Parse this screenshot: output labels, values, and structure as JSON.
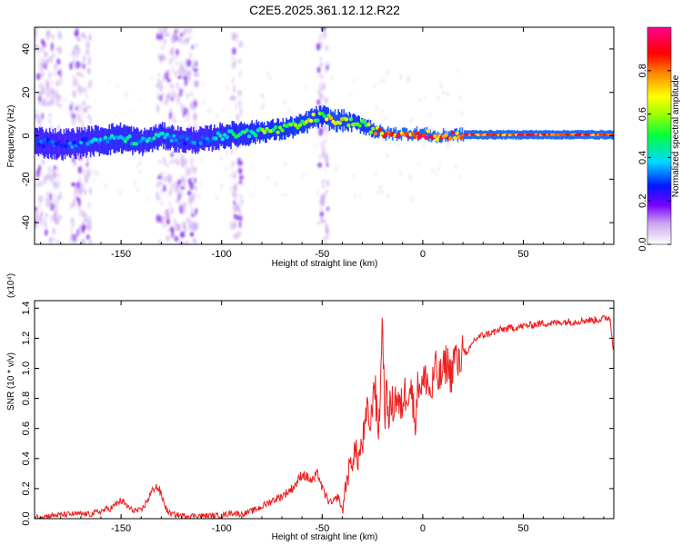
{
  "title": "C2E5.2025.361.12.12.R22",
  "colors": {
    "snr_line": "#ee2020",
    "track_core": "#e83030",
    "axis": "#000000"
  },
  "chart_data": [
    {
      "type": "heatmap",
      "name": "spectrogram",
      "xlabel": "Height of straight line (km)",
      "ylabel": "Frequency (Hz)",
      "xlim": [
        -193,
        95
      ],
      "ylim": [
        -50,
        50
      ],
      "xticks": [
        -150,
        -100,
        -50,
        0,
        50
      ],
      "yticks": [
        -40,
        -20,
        0,
        20,
        40
      ],
      "colorbar": {
        "label": "Normalized spectral amplitude",
        "range": [
          0,
          1
        ],
        "ticks": [
          0.0,
          0.2,
          0.4,
          0.6,
          0.8
        ],
        "tick_labels": [
          "0.0",
          "0.2",
          "0.4",
          "0.6",
          "0.8"
        ],
        "colormap": "rainbow (white-violet-blue-cyan-green-yellow-red-magenta)"
      },
      "track": {
        "description": "peak frequency of the spectrum vs height",
        "x": [
          -190,
          -180,
          -170,
          -160,
          -150,
          -140,
          -130,
          -120,
          -110,
          -100,
          -90,
          -80,
          -70,
          -60,
          -55,
          -50,
          -45,
          -40,
          -35,
          -30,
          -25,
          -20,
          -15,
          -10,
          -5,
          0,
          5,
          8,
          10,
          15,
          20,
          40,
          60,
          80,
          93
        ],
        "y": [
          -3,
          -4,
          -3,
          -2,
          -1,
          -3,
          0,
          -2,
          -2,
          0,
          1,
          2,
          3,
          5,
          8,
          9,
          7,
          7,
          6,
          5,
          3,
          1,
          1,
          1,
          1,
          1,
          0,
          -1,
          0,
          0.5,
          0.5,
          0.5,
          0.5,
          0.5,
          0.5
        ],
        "amplitude": [
          0.3,
          0.3,
          0.35,
          0.4,
          0.45,
          0.4,
          0.45,
          0.3,
          0.35,
          0.45,
          0.5,
          0.55,
          0.6,
          0.65,
          0.65,
          0.6,
          0.75,
          0.7,
          0.6,
          0.6,
          0.7,
          0.85,
          0.9,
          0.9,
          0.9,
          0.9,
          0.9,
          0.8,
          0.9,
          0.9,
          0.9,
          0.9,
          0.9,
          0.9,
          0.9
        ],
        "spread_hz": [
          6,
          6,
          6,
          6,
          6,
          5,
          5,
          5,
          5,
          5,
          5,
          4,
          4,
          4,
          4,
          4,
          4,
          4,
          3,
          3,
          3,
          2,
          2,
          2,
          2,
          2,
          2,
          2,
          2,
          2,
          2,
          2,
          2,
          2,
          2
        ]
      },
      "noise_bands_km": [
        [
          -193,
          -180
        ],
        [
          -175,
          -165
        ],
        [
          -132,
          -112
        ],
        [
          -95,
          -90
        ],
        [
          -52,
          -47
        ]
      ]
    },
    {
      "type": "line",
      "name": "snr",
      "xlabel": "Height of straight line (km)",
      "ylabel": "SNR (10 * v/v)",
      "scale_label": "(x10⁴)",
      "xlim": [
        -193,
        95
      ],
      "ylim": [
        0,
        1.45
      ],
      "xticks": [
        -150,
        -100,
        -50,
        0,
        50
      ],
      "yticks": [
        0.0,
        0.2,
        0.4,
        0.6,
        0.8,
        1.0,
        1.2,
        1.4
      ],
      "ytick_labels": [
        "0.0",
        "0.2",
        "0.4",
        "0.6",
        "0.8",
        "1.0",
        "1.2",
        "1.4"
      ],
      "series": [
        {
          "name": "SNR",
          "x": [
            -193,
            -185,
            -175,
            -165,
            -160,
            -155,
            -150,
            -145,
            -140,
            -137,
            -135,
            -133,
            -131,
            -129,
            -127,
            -125,
            -120,
            -110,
            -100,
            -95,
            -90,
            -85,
            -80,
            -75,
            -70,
            -65,
            -62,
            -60,
            -58,
            -55,
            -52,
            -50,
            -47,
            -45,
            -42,
            -40,
            -38,
            -36,
            -34,
            -32,
            -30,
            -28,
            -27,
            -26,
            -25,
            -24,
            -23,
            -22,
            -21,
            -20,
            -19,
            -18,
            -17,
            -15,
            -13,
            -11,
            -10,
            -8,
            -6,
            -4,
            -2,
            0,
            2,
            4,
            6,
            8,
            10,
            12,
            14,
            16,
            18,
            20,
            22,
            25,
            28,
            30,
            35,
            40,
            45,
            50,
            55,
            60,
            65,
            70,
            75,
            80,
            85,
            90,
            93,
            95
          ],
          "y": [
            0.01,
            0.02,
            0.03,
            0.03,
            0.05,
            0.07,
            0.12,
            0.06,
            0.05,
            0.12,
            0.17,
            0.22,
            0.19,
            0.12,
            0.05,
            0.03,
            0.02,
            0.02,
            0.02,
            0.04,
            0.03,
            0.05,
            0.08,
            0.12,
            0.15,
            0.2,
            0.25,
            0.3,
            0.28,
            0.25,
            0.3,
            0.2,
            0.12,
            0.1,
            0.15,
            0.05,
            0.25,
            0.35,
            0.45,
            0.4,
            0.5,
            0.65,
            0.75,
            0.55,
            0.8,
            0.95,
            0.7,
            0.6,
            0.85,
            1.4,
            0.7,
            0.8,
            0.72,
            0.75,
            0.82,
            0.7,
            0.8,
            0.85,
            0.9,
            0.65,
            0.92,
            0.88,
            0.95,
            0.8,
            1.0,
            0.92,
            0.97,
            1.05,
            0.95,
            1.1,
            1.0,
            1.15,
            1.08,
            1.18,
            1.21,
            1.22,
            1.24,
            1.26,
            1.27,
            1.28,
            1.29,
            1.3,
            1.3,
            1.31,
            1.31,
            1.32,
            1.32,
            1.33,
            1.34,
            1.1
          ]
        }
      ]
    }
  ]
}
